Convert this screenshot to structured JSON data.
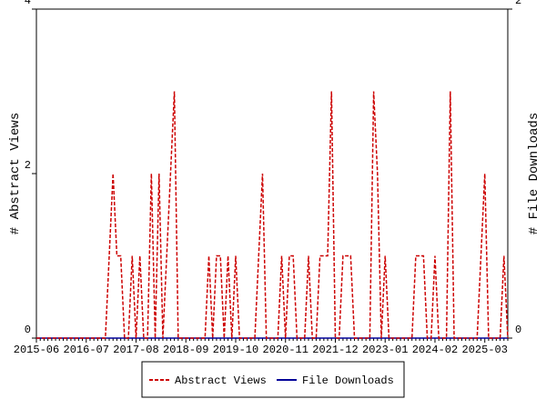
{
  "chart_data": {
    "type": "line",
    "y_label": "# Abstract Views",
    "y2_label": "# File Downloads",
    "categories": [
      "2015-06",
      null,
      null,
      null,
      null,
      null,
      null,
      null,
      null,
      null,
      null,
      null,
      null,
      "2016-07",
      null,
      null,
      null,
      null,
      null,
      null,
      null,
      null,
      null,
      null,
      null,
      null,
      "2017-08",
      null,
      null,
      null,
      null,
      null,
      null,
      null,
      null,
      null,
      null,
      null,
      null,
      "2018-09",
      null,
      null,
      null,
      null,
      null,
      null,
      null,
      null,
      null,
      null,
      null,
      null,
      "2019-10",
      null,
      null,
      null,
      null,
      null,
      null,
      null,
      null,
      null,
      null,
      null,
      null,
      "2020-11",
      null,
      null,
      null,
      null,
      null,
      null,
      null,
      null,
      null,
      null,
      null,
      null,
      "2021-12",
      null,
      null,
      null,
      null,
      null,
      null,
      null,
      null,
      null,
      null,
      null,
      null,
      "2023-01",
      null,
      null,
      null,
      null,
      null,
      null,
      null,
      null,
      null,
      null,
      null,
      null,
      "2024-02",
      null,
      null,
      null,
      null,
      null,
      null,
      null,
      null,
      null,
      null,
      null,
      null,
      "2025-03",
      null,
      null,
      null,
      null,
      null,
      null
    ],
    "series": [
      {
        "name": "Abstract Views",
        "color": "#cc0000",
        "axis": "y",
        "values": [
          0,
          0,
          0,
          0,
          0,
          0,
          0,
          0,
          0,
          0,
          0,
          0,
          0,
          0,
          0,
          0,
          0,
          0,
          0,
          1,
          2,
          1,
          1,
          0,
          0,
          1,
          0,
          1,
          0,
          0,
          2,
          0,
          2,
          0,
          1,
          2,
          3,
          0,
          0,
          0,
          0,
          0,
          0,
          0,
          0,
          1,
          0,
          1,
          1,
          0,
          1,
          0,
          1,
          0,
          0,
          0,
          0,
          0,
          1,
          2,
          0,
          0,
          0,
          0,
          1,
          0,
          1,
          1,
          0,
          0,
          0,
          1,
          0,
          0,
          1,
          1,
          1,
          3,
          0,
          0,
          1,
          1,
          1,
          0,
          0,
          0,
          0,
          0,
          3,
          2,
          0,
          1,
          0,
          0,
          0,
          0,
          0,
          0,
          0,
          1,
          1,
          1,
          0,
          0,
          1,
          0,
          0,
          0,
          3,
          0,
          0,
          0,
          0,
          0,
          0,
          0,
          1,
          2,
          0,
          0,
          0,
          0,
          1,
          0
        ]
      },
      {
        "name": "File Downloads",
        "color": "#000099",
        "axis": "y2",
        "values": [
          0,
          0,
          0,
          0,
          0,
          0,
          0,
          0,
          0,
          0,
          0,
          0,
          0,
          0,
          0,
          0,
          0,
          0,
          0,
          0,
          0,
          0,
          0,
          0,
          0,
          0,
          0,
          0,
          0,
          0,
          0,
          0,
          0,
          0,
          0,
          0,
          0,
          0,
          0,
          0,
          0,
          0,
          0,
          0,
          0,
          0,
          0,
          0,
          0,
          0,
          0,
          0,
          0,
          0,
          0,
          0,
          0,
          0,
          0,
          0,
          0,
          0,
          0,
          0,
          0,
          0,
          0,
          0,
          0,
          0,
          0,
          0,
          0,
          0,
          0,
          0,
          0,
          0,
          0,
          0,
          0,
          0,
          0,
          0,
          0,
          0,
          0,
          0,
          0,
          0,
          0,
          0,
          0,
          0,
          0,
          0,
          0,
          0,
          0,
          0,
          0,
          0,
          0,
          0,
          0,
          0,
          0,
          0,
          0,
          0,
          0,
          0,
          0,
          0,
          0,
          0,
          0,
          0,
          0,
          0,
          0,
          0,
          0,
          0
        ]
      }
    ],
    "ylim": [
      0,
      4
    ],
    "yticks": [
      0,
      2,
      4
    ],
    "y2lim": [
      0,
      2
    ],
    "y2ticks": [
      0,
      2
    ],
    "legend": "bottom"
  }
}
